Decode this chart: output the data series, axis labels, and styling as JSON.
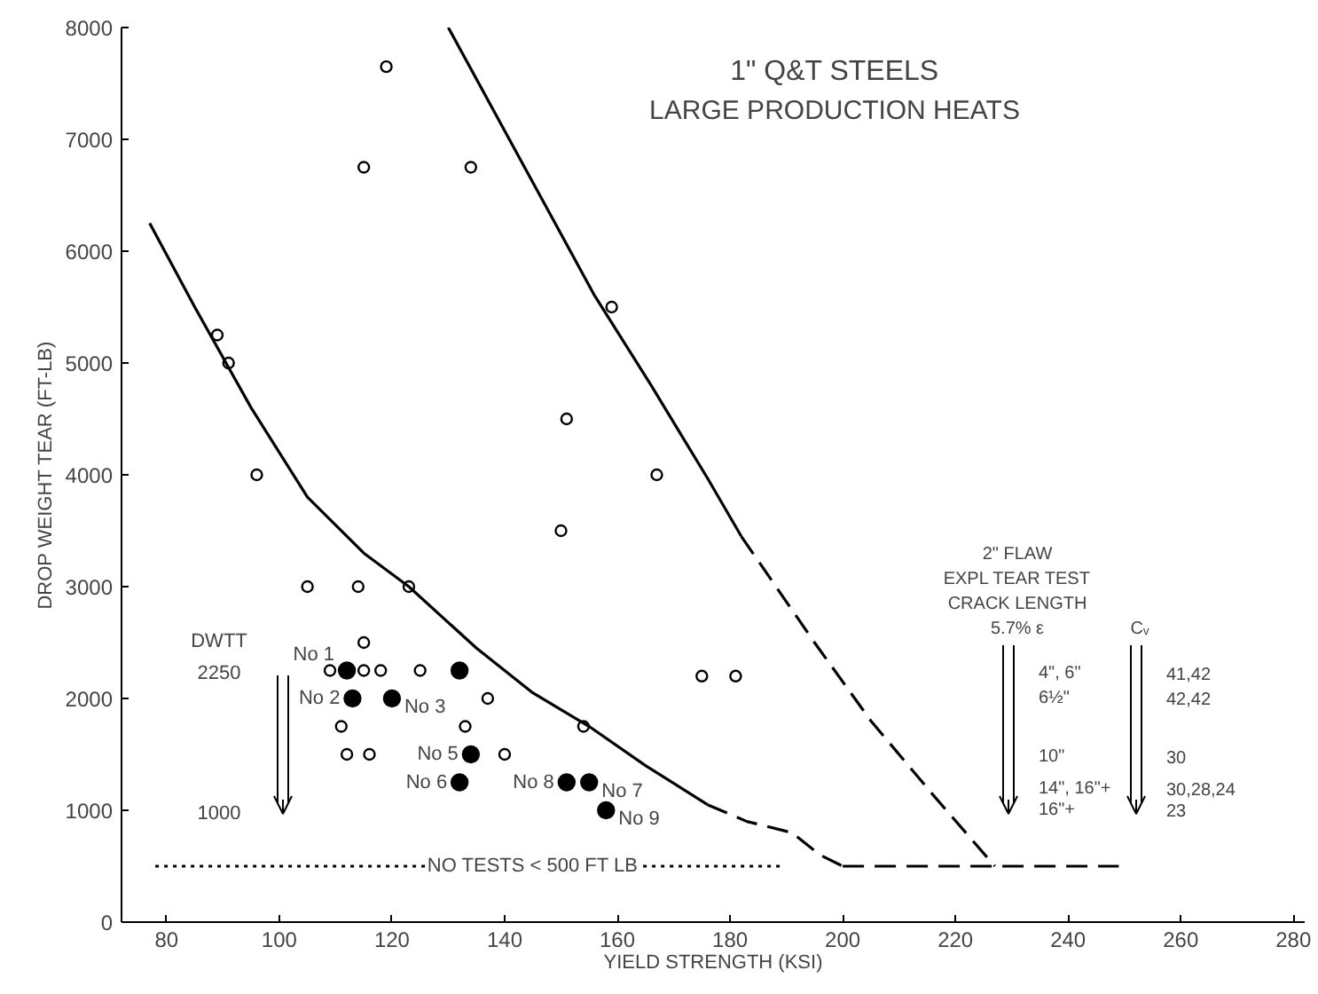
{
  "chart_data": {
    "type": "scatter",
    "title": "1\" Q&T STEELS",
    "subtitle": "LARGE PRODUCTION HEATS",
    "xlabel": "YIELD STRENGTH (KSI)",
    "ylabel": "DROP WEIGHT TEAR (FT-LB)",
    "xlim": [
      72,
      282
    ],
    "ylim": [
      0,
      8000
    ],
    "xticks": [
      80,
      100,
      120,
      140,
      160,
      180,
      200,
      220,
      240,
      260,
      280
    ],
    "yticks": [
      0,
      1000,
      2000,
      3000,
      4000,
      5000,
      6000,
      7000,
      8000
    ],
    "grid": false,
    "series": [
      {
        "color": "#000000",
        "marker": "circle",
        "x": [
          119,
          115,
          134,
          159,
          89,
          91,
          151,
          96,
          167,
          150,
          175,
          181,
          105,
          114,
          123,
          115,
          109,
          115,
          118,
          125,
          137,
          111,
          133,
          112,
          116,
          140,
          154
        ],
        "values": [
          7650,
          6750,
          6750,
          5500,
          5250,
          5000,
          4500,
          4000,
          4000,
          3500,
          2200,
          2200,
          3000,
          3000,
          3000,
          2500,
          2250,
          2250,
          2250,
          2250,
          2000,
          1750,
          1750,
          1500,
          1500,
          1500,
          1750
        ]
      },
      {
        "color": "#000000",
        "marker": "circle",
        "x": [
          112,
          113,
          120,
          134,
          132,
          155,
          151,
          158,
          132
        ],
        "values": [
          2250,
          2000,
          2000,
          1500,
          1250,
          1250,
          1250,
          1000,
          2250
        ]
      },
      {
        "type": "line",
        "color": "#000000",
        "line_style": "solid",
        "x": [
          77,
          85,
          95,
          105,
          115,
          123,
          135,
          145,
          155,
          165,
          176
        ],
        "values": [
          6250,
          5500,
          4600,
          3800,
          3300,
          3000,
          2450,
          2050,
          1750,
          1400,
          1050
        ]
      },
      {
        "type": "line",
        "color": "#000000",
        "line_style": "dashed",
        "x": [
          176,
          183,
          191,
          196,
          200
        ],
        "values": [
          1050,
          900,
          800,
          600,
          500
        ]
      },
      {
        "type": "line",
        "color": "#000000",
        "line_style": "solid",
        "x": [
          130,
          143,
          156,
          166,
          176,
          182
        ],
        "values": [
          8000,
          6800,
          5600,
          4800,
          3970,
          3450
        ]
      },
      {
        "type": "line",
        "color": "#000000",
        "line_style": "dashed",
        "x": [
          182,
          195,
          205,
          216,
          227
        ],
        "values": [
          3450,
          2500,
          1800,
          1140,
          500
        ]
      },
      {
        "type": "line",
        "color": "#000000",
        "line_style": "dotted",
        "x": [
          78,
          189
        ],
        "values": [
          500,
          500
        ]
      },
      {
        "type": "line",
        "color": "#000000",
        "line_style": "dashed",
        "x": [
          200,
          249
        ],
        "values": [
          500,
          500
        ]
      }
    ],
    "annotations": [
      {
        "text": "NO TESTS < 500 FT LB",
        "x": 145,
        "y": 500
      },
      {
        "text": "No 1",
        "x": 112,
        "y": 2250
      },
      {
        "text": "No 2",
        "x": 113,
        "y": 2000
      },
      {
        "text": "No 3",
        "x": 120,
        "y": 2000
      },
      {
        "text": "No 5",
        "x": 134,
        "y": 1500
      },
      {
        "text": "No 6",
        "x": 132,
        "y": 1250
      },
      {
        "text": "No 7",
        "x": 155,
        "y": 1250
      },
      {
        "text": "No 8",
        "x": 151,
        "y": 1250
      },
      {
        "text": "No 9",
        "x": 158,
        "y": 1000
      },
      "DWTT",
      "2250",
      "1000",
      "2\" FLAW",
      "EXPL TEAR TEST",
      "CRACK LENGTH",
      "5.7% ε",
      "4\", 6\"",
      "6½\"",
      "10\"",
      "14\", 16\"+",
      "16\"+",
      "Cᵥ",
      "41,42",
      "42,42",
      "30",
      "30,28,24",
      "23"
    ]
  }
}
